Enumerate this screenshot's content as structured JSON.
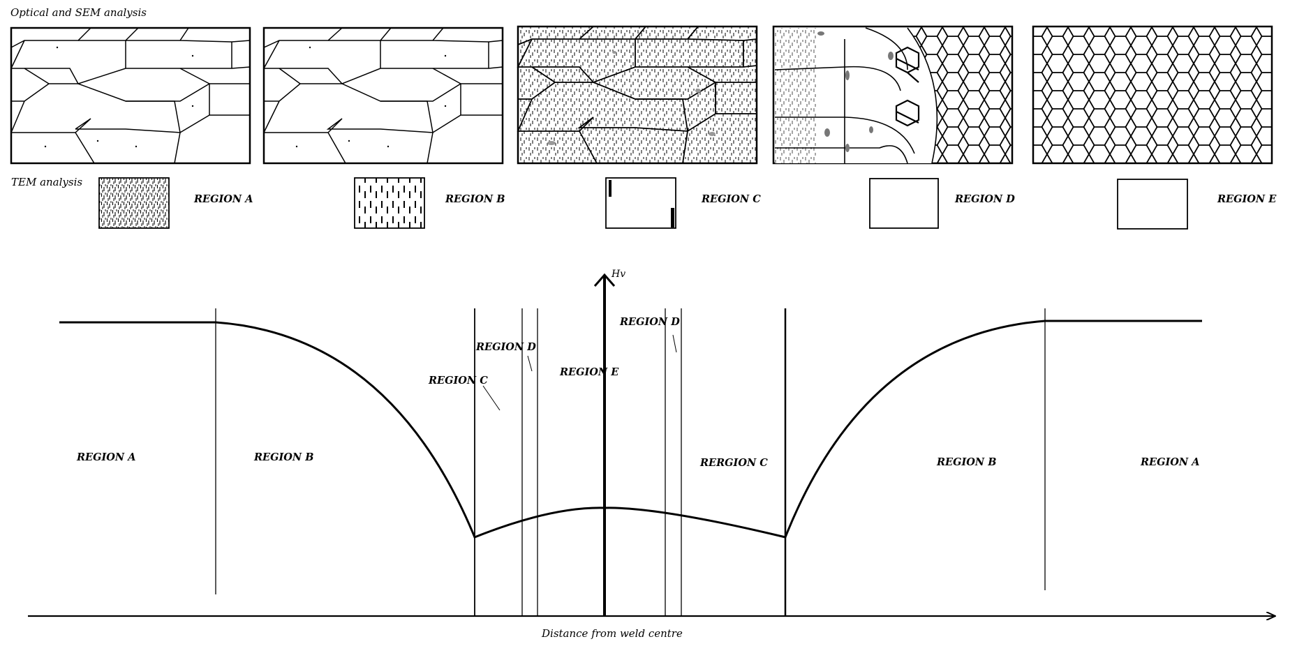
{
  "headers": {
    "optical": "Optical and SEM analysis",
    "tem": "TEM analysis"
  },
  "tem_labels": [
    "REGION A",
    "REGION B",
    "REGION C",
    "REGION D",
    "REGION E"
  ],
  "hardness_plot": {
    "y_axis_label": "Hv",
    "x_axis_label": "Distance from weld centre",
    "region_labels": {
      "left_a": "REGION A",
      "left_b": "REGION B",
      "left_c": "REGION C",
      "left_d": "REGION D",
      "center_e": "REGION E",
      "right_d": "REGION D",
      "right_c": "RERGION C",
      "right_b": "REGION B",
      "right_a": "REGION A"
    }
  }
}
